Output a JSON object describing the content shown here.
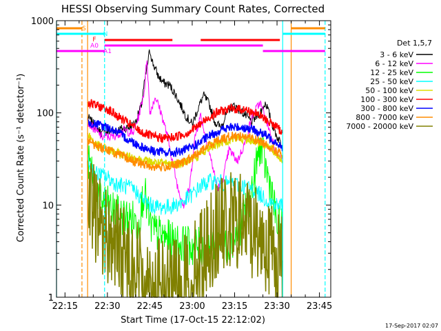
{
  "title": "HESSI Observing Summary Count Rates, Corrected",
  "ylabel": "Corrected Count Rate (s⁻¹ detector⁻¹)",
  "xlabel": "Start Time (17-Oct-15 22:12:02)",
  "timestamp": "17-Sep-2017 02:07",
  "legend_title": "Det 1,5,7",
  "state_bar_labels": [
    "S",
    "N",
    "F",
    "A0",
    "A1"
  ],
  "chart_data": {
    "type": "line",
    "title": "HESSI Observing Summary Count Rates, Corrected",
    "xlabel": "Start Time (17-Oct-15 22:12:02)",
    "ylabel": "Corrected Count Rate (s^-1 detector^-1)",
    "yscale": "log",
    "ylim": [
      1,
      1000
    ],
    "xlim_minutes_after_2212": [
      0,
      97
    ],
    "x_tick_labels": [
      "22:15",
      "22:30",
      "22:45",
      "23:00",
      "23:15",
      "23:30",
      "23:45"
    ],
    "y_tick_labels": [
      "1",
      "10",
      "100",
      "1000"
    ],
    "legend_position": "right",
    "series": [
      {
        "name": "3 - 6 keV",
        "color": "#000000",
        "points": [
          [
            "22:23",
            90
          ],
          [
            "22:28",
            60
          ],
          [
            "22:33",
            65
          ],
          [
            "22:38",
            70
          ],
          [
            "22:40",
            80
          ],
          [
            "22:42",
            120
          ],
          [
            "22:43",
            200
          ],
          [
            "22:45",
            480
          ],
          [
            "22:46",
            350
          ],
          [
            "22:48",
            250
          ],
          [
            "22:50",
            210
          ],
          [
            "22:52",
            200
          ],
          [
            "22:54",
            160
          ],
          [
            "22:56",
            120
          ],
          [
            "22:58",
            90
          ],
          [
            "23:00",
            75
          ],
          [
            "23:02",
            110
          ],
          [
            "23:04",
            155
          ],
          [
            "23:06",
            125
          ],
          [
            "23:08",
            80
          ],
          [
            "23:10",
            70
          ],
          [
            "23:13",
            110
          ],
          [
            "23:15",
            120
          ],
          [
            "23:18",
            100
          ],
          [
            "23:21",
            80
          ],
          [
            "23:24",
            100
          ],
          [
            "23:26",
            130
          ],
          [
            "23:28",
            80
          ],
          [
            "23:30",
            55
          ],
          [
            "23:32",
            45
          ]
        ]
      },
      {
        "name": "6 - 12 keV",
        "color": "#ff00ff",
        "points": [
          [
            "22:23",
            80
          ],
          [
            "22:28",
            55
          ],
          [
            "22:32",
            55
          ],
          [
            "22:36",
            65
          ],
          [
            "22:39",
            60
          ],
          [
            "22:41",
            90
          ],
          [
            "22:43",
            170
          ],
          [
            "22:44",
            400
          ],
          [
            "22:45",
            100
          ],
          [
            "22:47",
            150
          ],
          [
            "22:49",
            100
          ],
          [
            "22:51",
            60
          ],
          [
            "22:53",
            30
          ],
          [
            "22:55",
            15
          ],
          [
            "22:57",
            10
          ],
          [
            "22:59",
            15
          ],
          [
            "23:01",
            55
          ],
          [
            "23:03",
            95
          ],
          [
            "23:05",
            50
          ],
          [
            "23:07",
            28
          ],
          [
            "23:09",
            15
          ],
          [
            "23:11",
            20
          ],
          [
            "23:13",
            40
          ],
          [
            "23:16",
            30
          ],
          [
            "23:19",
            50
          ],
          [
            "23:21",
            90
          ],
          [
            "23:24",
            130
          ],
          [
            "23:27",
            70
          ],
          [
            "23:30",
            35
          ],
          [
            "23:32",
            30
          ]
        ]
      },
      {
        "name": "12 - 25 keV",
        "color": "#00ff00",
        "points": [
          [
            "22:23",
            30
          ],
          [
            "22:25",
            22
          ],
          [
            "22:27",
            12
          ],
          [
            "22:30",
            10
          ],
          [
            "22:33",
            8
          ],
          [
            "22:36",
            7.5
          ],
          [
            "22:39",
            7
          ],
          [
            "22:41",
            6
          ],
          [
            "22:43",
            15
          ],
          [
            "22:45",
            6
          ],
          [
            "22:47",
            5
          ],
          [
            "22:50",
            4.5
          ],
          [
            "22:53",
            4
          ],
          [
            "22:56",
            3.8
          ],
          [
            "22:59",
            3.6
          ],
          [
            "23:02",
            3.5
          ],
          [
            "23:05",
            3.5
          ],
          [
            "23:08",
            3.8
          ],
          [
            "23:10",
            4.5
          ],
          [
            "23:12",
            3.5
          ],
          [
            "23:14",
            3.8
          ],
          [
            "23:17",
            6
          ],
          [
            "23:20",
            10
          ],
          [
            "23:22",
            20
          ],
          [
            "23:24",
            45
          ],
          [
            "23:26",
            25
          ],
          [
            "23:28",
            15
          ],
          [
            "23:30",
            6
          ],
          [
            "23:32",
            6
          ]
        ]
      },
      {
        "name": "25 - 50 keV",
        "color": "#00ffff",
        "points": [
          [
            "22:23",
            30
          ],
          [
            "22:26",
            22
          ],
          [
            "22:30",
            20
          ],
          [
            "22:33",
            17
          ],
          [
            "22:36",
            16
          ],
          [
            "22:39",
            15
          ],
          [
            "22:42",
            12
          ],
          [
            "22:45",
            10
          ],
          [
            "22:48",
            9.5
          ],
          [
            "22:51",
            9.5
          ],
          [
            "22:54",
            10
          ],
          [
            "22:57",
            11
          ],
          [
            "23:00",
            13
          ],
          [
            "23:03",
            16
          ],
          [
            "23:06",
            18
          ],
          [
            "23:09",
            18
          ],
          [
            "23:12",
            17
          ],
          [
            "23:15",
            17
          ],
          [
            "23:18",
            16
          ],
          [
            "23:21",
            15
          ],
          [
            "23:24",
            13
          ],
          [
            "23:27",
            11
          ],
          [
            "23:30",
            10
          ],
          [
            "23:32",
            10
          ]
        ]
      },
      {
        "name": "50 - 100 keV",
        "color": "#dddd00",
        "points": [
          [
            "22:23",
            60
          ],
          [
            "22:26",
            45
          ],
          [
            "22:30",
            40
          ],
          [
            "22:34",
            36
          ],
          [
            "22:38",
            33
          ],
          [
            "22:42",
            31
          ],
          [
            "22:46",
            29
          ],
          [
            "22:50",
            28
          ],
          [
            "22:54",
            28
          ],
          [
            "22:58",
            30
          ],
          [
            "23:02",
            34
          ],
          [
            "23:06",
            42
          ],
          [
            "23:10",
            48
          ],
          [
            "23:14",
            52
          ],
          [
            "23:18",
            52
          ],
          [
            "23:22",
            50
          ],
          [
            "23:26",
            45
          ],
          [
            "23:30",
            35
          ],
          [
            "23:32",
            30
          ]
        ]
      },
      {
        "name": "100 - 300 keV",
        "color": "#ff0000",
        "points": [
          [
            "22:23",
            130
          ],
          [
            "22:26",
            120
          ],
          [
            "22:30",
            110
          ],
          [
            "22:34",
            90
          ],
          [
            "22:38",
            75
          ],
          [
            "22:42",
            62
          ],
          [
            "22:46",
            55
          ],
          [
            "22:50",
            53
          ],
          [
            "22:54",
            55
          ],
          [
            "22:58",
            60
          ],
          [
            "23:02",
            72
          ],
          [
            "23:06",
            90
          ],
          [
            "23:10",
            105
          ],
          [
            "23:14",
            110
          ],
          [
            "23:18",
            110
          ],
          [
            "23:22",
            100
          ],
          [
            "23:26",
            85
          ],
          [
            "23:30",
            70
          ],
          [
            "23:32",
            60
          ]
        ]
      },
      {
        "name": "300 - 800 keV",
        "color": "#0000ff",
        "points": [
          [
            "22:23",
            80
          ],
          [
            "22:26",
            75
          ],
          [
            "22:30",
            70
          ],
          [
            "22:34",
            60
          ],
          [
            "22:38",
            50
          ],
          [
            "22:42",
            43
          ],
          [
            "22:46",
            39
          ],
          [
            "22:50",
            37
          ],
          [
            "22:54",
            37
          ],
          [
            "22:58",
            40
          ],
          [
            "23:02",
            46
          ],
          [
            "23:06",
            56
          ],
          [
            "23:10",
            65
          ],
          [
            "23:14",
            70
          ],
          [
            "23:18",
            70
          ],
          [
            "23:22",
            65
          ],
          [
            "23:26",
            57
          ],
          [
            "23:30",
            48
          ],
          [
            "23:32",
            42
          ]
        ]
      },
      {
        "name": "800 - 7000 keV",
        "color": "#ff8c00",
        "points": [
          [
            "22:23",
            50
          ],
          [
            "22:26",
            44
          ],
          [
            "22:30",
            40
          ],
          [
            "22:34",
            35
          ],
          [
            "22:38",
            31
          ],
          [
            "22:42",
            28
          ],
          [
            "22:46",
            26
          ],
          [
            "22:50",
            26
          ],
          [
            "22:54",
            27
          ],
          [
            "22:58",
            30
          ],
          [
            "23:02",
            36
          ],
          [
            "23:06",
            45
          ],
          [
            "23:10",
            52
          ],
          [
            "23:14",
            56
          ],
          [
            "23:18",
            56
          ],
          [
            "23:22",
            52
          ],
          [
            "23:26",
            46
          ],
          [
            "23:30",
            38
          ],
          [
            "23:32",
            35
          ]
        ]
      },
      {
        "name": "7000 - 20000 keV",
        "color": "#808000",
        "points": [
          [
            "22:23",
            9
          ],
          [
            "22:26",
            8
          ],
          [
            "22:29",
            5
          ],
          [
            "22:32",
            4
          ],
          [
            "22:35",
            3
          ],
          [
            "22:38",
            2.5
          ],
          [
            "22:41",
            2
          ],
          [
            "22:44",
            1.5
          ],
          [
            "22:47",
            1.3
          ],
          [
            "22:50",
            1.2
          ],
          [
            "22:53",
            1.2
          ],
          [
            "22:56",
            1.3
          ],
          [
            "22:59",
            1.5
          ],
          [
            "23:02",
            2.5
          ],
          [
            "23:05",
            3.5
          ],
          [
            "23:08",
            5
          ],
          [
            "23:11",
            6
          ],
          [
            "23:14",
            6.5
          ],
          [
            "23:17",
            6.5
          ],
          [
            "23:20",
            6
          ],
          [
            "23:23",
            5
          ],
          [
            "23:26",
            4
          ],
          [
            "23:29",
            3
          ],
          [
            "23:32",
            2.5
          ]
        ]
      }
    ],
    "state_bars": [
      {
        "label": "S",
        "color": "#ff8c00",
        "segments": [
          [
            "22:12",
            "22:21"
          ],
          [
            "23:35",
            "23:47"
          ]
        ]
      },
      {
        "label": "N",
        "color": "#00ffff",
        "segments": [
          [
            "22:12",
            "22:29"
          ],
          [
            "23:32",
            "23:47"
          ]
        ]
      },
      {
        "label": "F",
        "color": "#ff0000",
        "segments": [
          [
            "22:29",
            "22:53"
          ],
          [
            "23:03",
            "23:31"
          ]
        ]
      },
      {
        "label": "A0",
        "color": "#ff00ff",
        "segments": [
          [
            "22:29",
            "23:25"
          ]
        ]
      },
      {
        "label": "A1",
        "color": "#ff00ff",
        "segments": [
          [
            "22:12",
            "22:29"
          ],
          [
            "23:25",
            "23:47"
          ]
        ]
      }
    ],
    "vertical_lines": [
      {
        "time": "22:12",
        "color": "#00ffff",
        "style": "solid"
      },
      {
        "time": "22:21",
        "color": "#ff8c00",
        "style": "dashed"
      },
      {
        "time": "22:23",
        "color": "#ff8c00",
        "style": "solid"
      },
      {
        "time": "22:29",
        "color": "#00ffff",
        "style": "dashed"
      },
      {
        "time": "23:32",
        "color": "#00ffff",
        "style": "solid"
      },
      {
        "time": "23:35",
        "color": "#ff8c00",
        "style": "solid"
      },
      {
        "time": "23:47",
        "color": "#00ffff",
        "style": "dashed"
      }
    ]
  }
}
